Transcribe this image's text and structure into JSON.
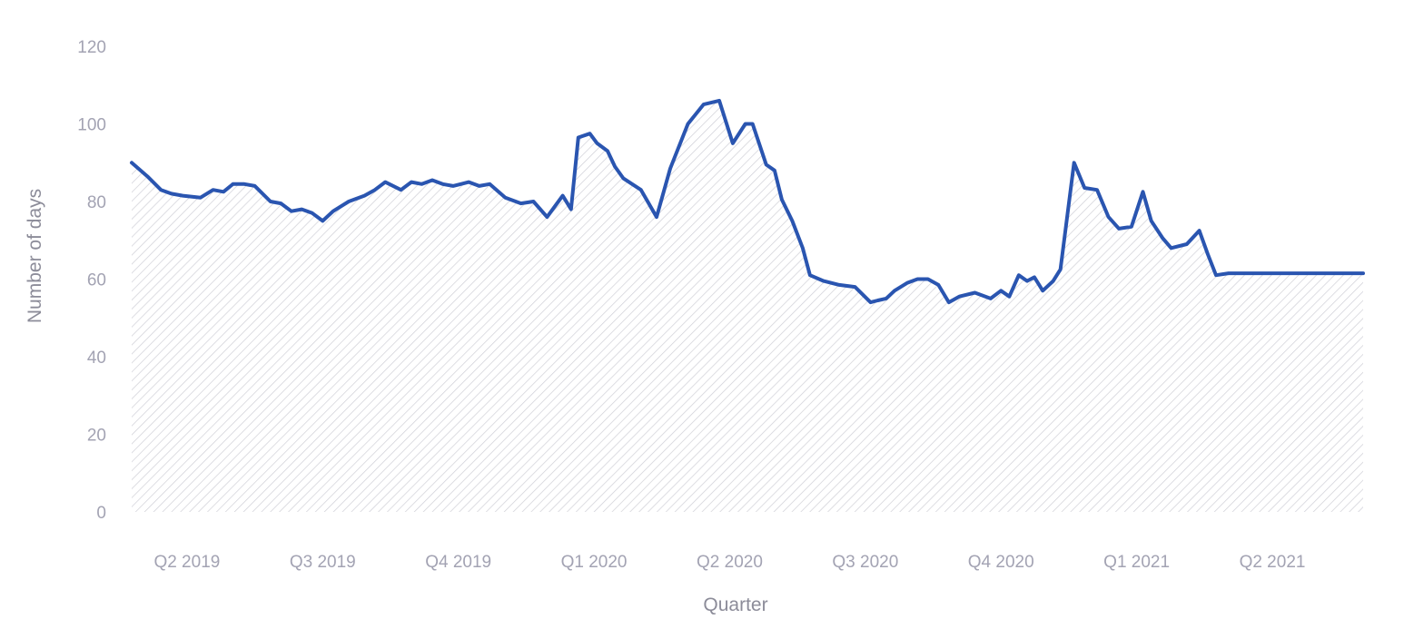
{
  "chart_data": {
    "type": "area",
    "xlabel": "Quarter",
    "ylabel": "Number of days",
    "ylim": [
      0,
      120
    ],
    "yticks": [
      0,
      20,
      40,
      60,
      80,
      100,
      120
    ],
    "xticks": [
      {
        "label": "Q2 2019",
        "x": 4
      },
      {
        "label": "Q3 2019",
        "x": 17
      },
      {
        "label": "Q4 2019",
        "x": 30
      },
      {
        "label": "Q1 2020",
        "x": 43
      },
      {
        "label": "Q2 2020",
        "x": 56
      },
      {
        "label": "Q3 2020",
        "x": 69
      },
      {
        "label": "Q4 2020",
        "x": 82
      },
      {
        "label": "Q1 2021",
        "x": 95
      },
      {
        "label": "Q2 2021",
        "x": 108
      }
    ],
    "xlim": [
      -1.3,
      116.7
    ],
    "grid": false,
    "colors": {
      "line": "#2a55b0",
      "fill_hatch": "#cfcfd6"
    },
    "series": [
      {
        "x": [
          -1.3,
          0.2,
          1.5,
          2.5,
          3.6,
          5.3,
          6.5,
          7.5,
          8.4,
          9.5,
          10.5,
          12,
          13,
          14,
          15,
          16,
          17,
          18,
          19.5,
          21,
          22,
          23,
          24.5,
          25.5,
          26.5,
          27.5,
          28.5,
          29.5,
          31,
          32,
          33,
          34.5,
          36,
          37.2,
          38.5,
          40,
          40.8,
          41.5,
          42.6,
          43.3,
          44.3,
          45,
          45.8,
          47.5,
          49,
          50.3,
          52,
          53.5,
          55,
          56.3,
          57.5,
          58.2,
          59.5,
          60.3,
          61,
          62,
          63,
          63.7,
          65,
          66.5,
          68,
          69.5,
          70.2,
          71,
          71.8,
          73,
          74,
          75,
          76,
          77,
          78,
          79.5,
          81,
          82,
          82.8,
          83.7,
          84.5,
          85.2,
          86,
          87,
          87.7,
          89,
          90,
          91.2,
          92.3,
          93.3,
          94.5,
          95.6,
          96.4,
          97.5,
          98.3,
          99.8,
          101,
          101.8,
          102.6,
          103.8,
          105.5,
          106.5,
          107,
          108.1,
          109,
          110,
          111,
          112.1,
          113.2,
          114,
          115.5,
          116.7
        ],
        "y": [
          90,
          86.5,
          83,
          82,
          81.5,
          81,
          83,
          82.5,
          84.5,
          84.5,
          84,
          80,
          79.5,
          77.5,
          78,
          77,
          75,
          77.5,
          80,
          81.5,
          83,
          85,
          83,
          85,
          84.5,
          85.5,
          84.5,
          84,
          85,
          84,
          84.5,
          81,
          79.5,
          80,
          76,
          81.5,
          78,
          96.5,
          97.5,
          95,
          93,
          89,
          86,
          83,
          76,
          88.5,
          100,
          105,
          106,
          95,
          100,
          100,
          89.5,
          88,
          80.5,
          75,
          68,
          61,
          59.5,
          58.5,
          58,
          54,
          54.5,
          55,
          57,
          59,
          60,
          60,
          58.5,
          54,
          55.5,
          56.5,
          55,
          57,
          55.5,
          61,
          59.5,
          60.5,
          57,
          59.5,
          62.5,
          90,
          83.5,
          83,
          76,
          73,
          73.5,
          82.5,
          75,
          70.5,
          68,
          69,
          72.5,
          66.5,
          61,
          61.5,
          61.5,
          61.5,
          61.5,
          61.5,
          61.5,
          61.5,
          61.5,
          61.5,
          61.5,
          61.5,
          61.5,
          61.5
        ]
      }
    ]
  }
}
